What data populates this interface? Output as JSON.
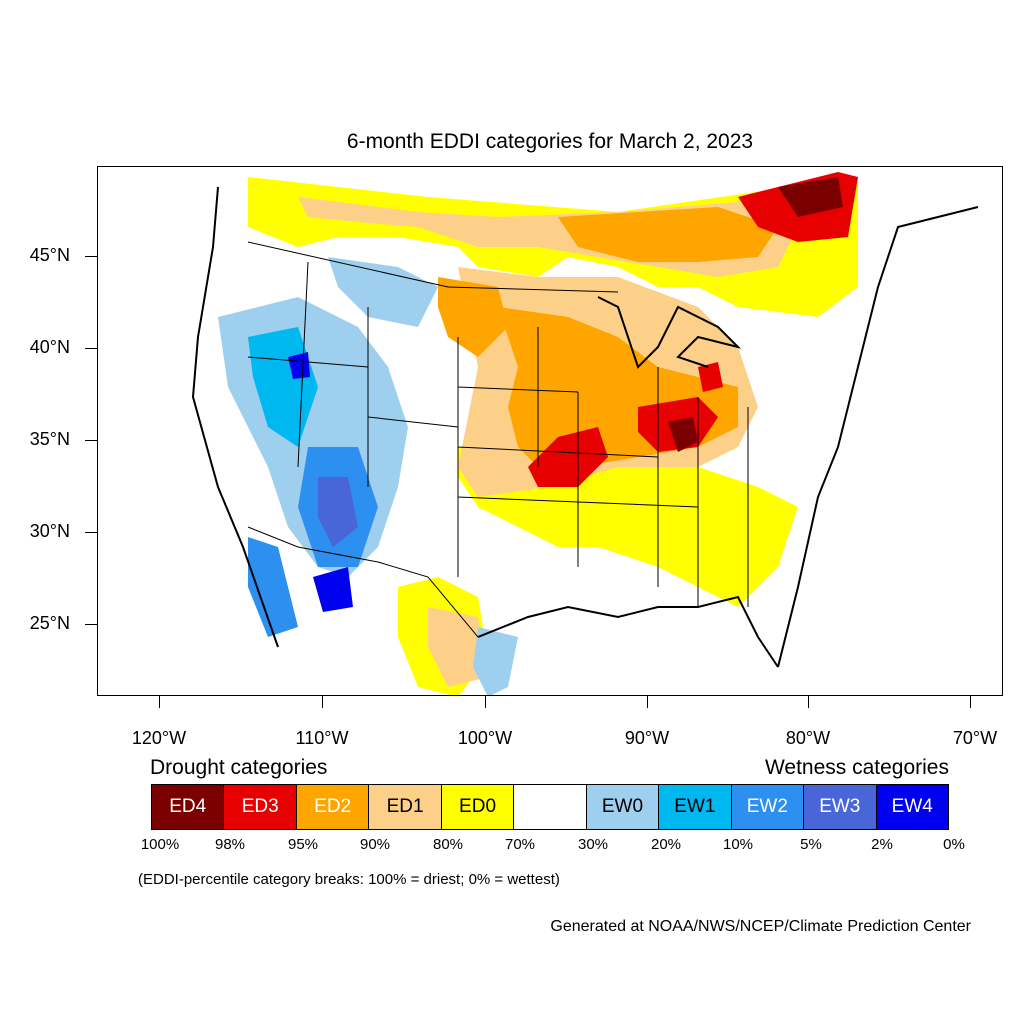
{
  "title": "6-month EDDI categories for March 2, 2023",
  "latitude_labels": [
    "45°N",
    "40°N",
    "35°N",
    "30°N",
    "25°N"
  ],
  "longitude_labels": [
    "120°W",
    "110°W",
    "100°W",
    "90°W",
    "80°W",
    "70°W"
  ],
  "legend": {
    "drought_heading": "Drought categories",
    "wetness_heading": "Wetness categories",
    "categories": [
      {
        "label": "ED4",
        "color": "#7a0000",
        "text_color": "#ffffff"
      },
      {
        "label": "ED3",
        "color": "#e60000",
        "text_color": "#ffffff"
      },
      {
        "label": "ED2",
        "color": "#ffa500",
        "text_color": "#ffffff"
      },
      {
        "label": "ED1",
        "color": "#fdd08a",
        "text_color": "#000000"
      },
      {
        "label": "ED0",
        "color": "#ffff00",
        "text_color": "#000000"
      },
      {
        "label": "",
        "color": "#ffffff",
        "text_color": "#000000"
      },
      {
        "label": "EW0",
        "color": "#9ecfee",
        "text_color": "#000000"
      },
      {
        "label": "EW1",
        "color": "#00b8f0",
        "text_color": "#000000"
      },
      {
        "label": "EW2",
        "color": "#2d8ff0",
        "text_color": "#ffffff"
      },
      {
        "label": "EW3",
        "color": "#4866d8",
        "text_color": "#ffffff"
      },
      {
        "label": "EW4",
        "color": "#0000f0",
        "text_color": "#ffffff"
      }
    ],
    "breaks": [
      "100%",
      "98%",
      "95%",
      "90%",
      "80%",
      "70%",
      "30%",
      "20%",
      "10%",
      "5%",
      "2%",
      "0%"
    ]
  },
  "note": "(EDDI-percentile category breaks: 100% = driest; 0% = wettest)",
  "credit": "Generated at NOAA/NWS/NCEP/Climate Prediction Center"
}
